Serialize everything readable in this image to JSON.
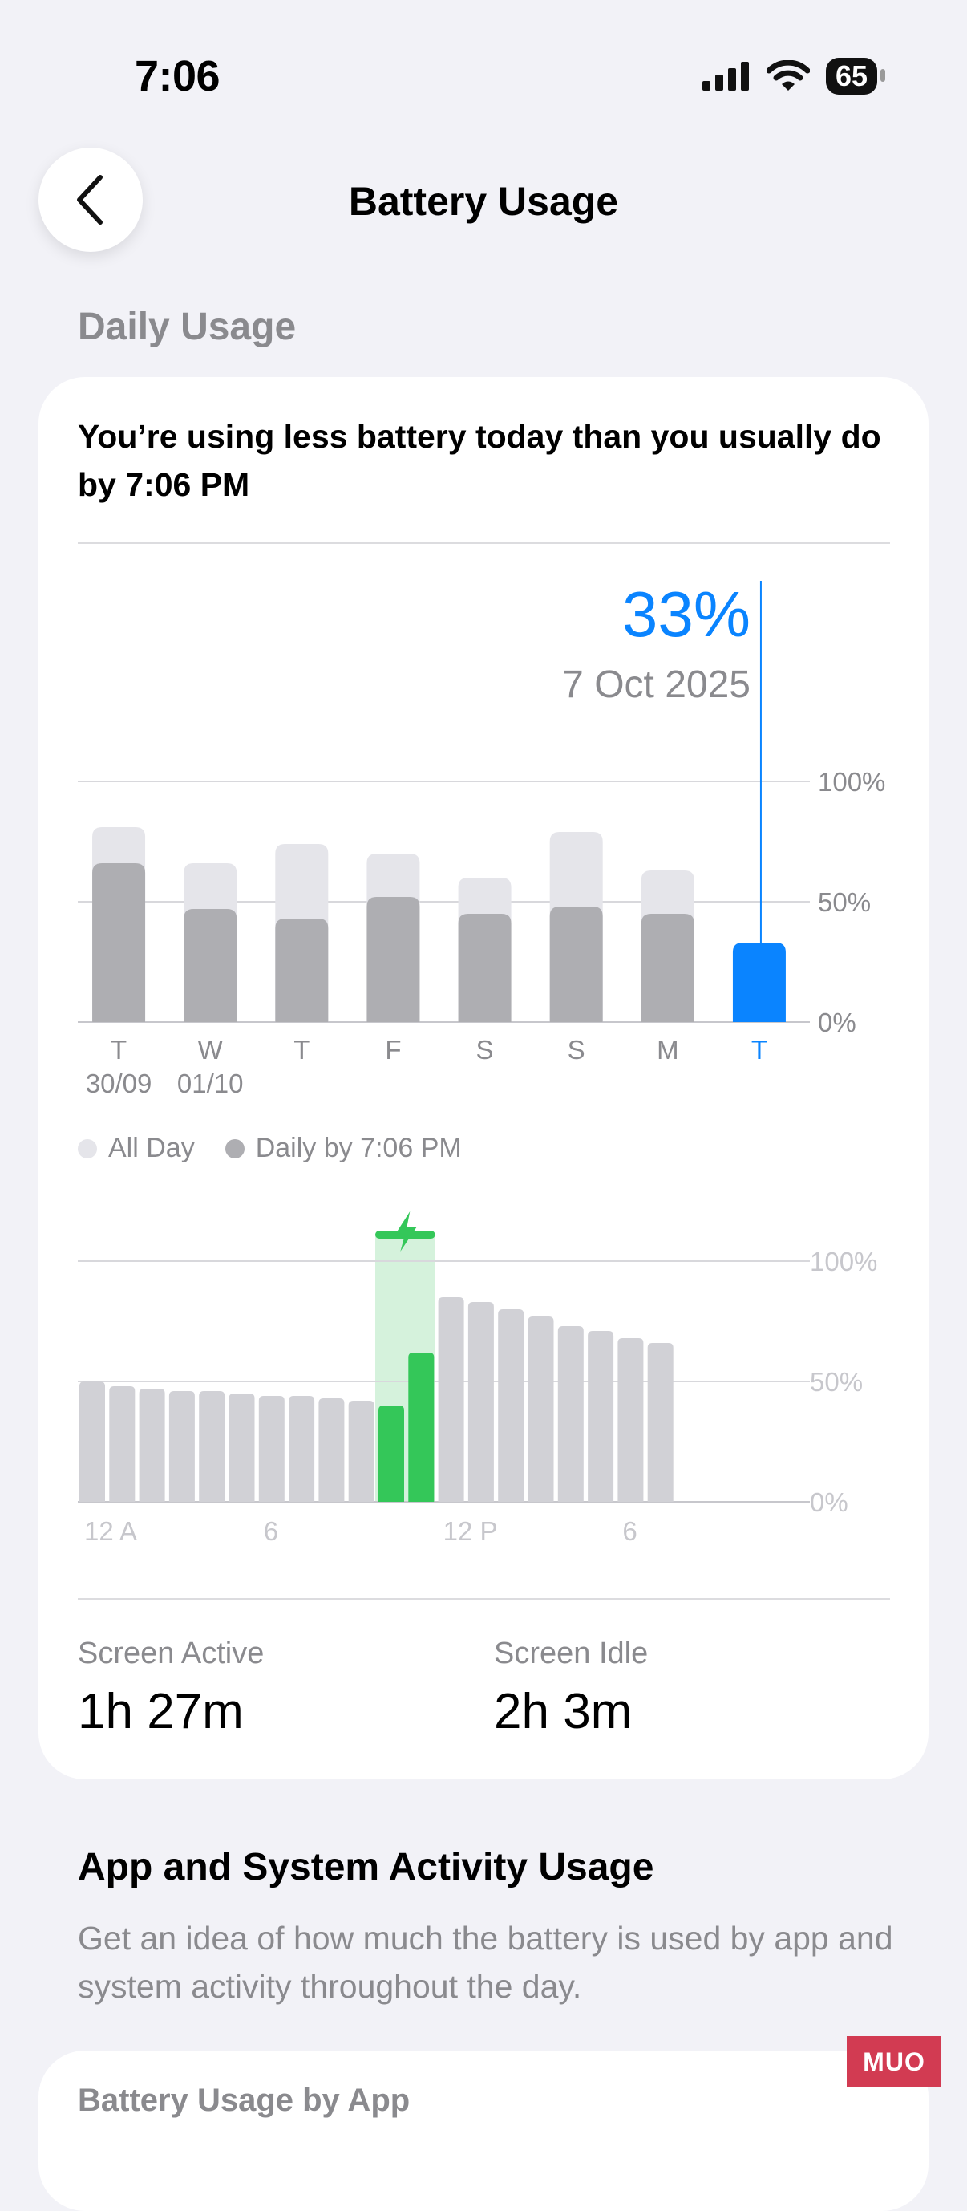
{
  "status_bar": {
    "time": "7:06",
    "battery_level": "65",
    "icons": [
      "cellular-signal-icon",
      "wifi-icon",
      "battery-icon"
    ]
  },
  "nav": {
    "back_icon": "chevron-left-icon",
    "title": "Battery Usage"
  },
  "daily_usage": {
    "section_label": "Daily Usage",
    "headline": "You’re using less battery today than you usually do by 7:06 PM",
    "selected_value": "33%",
    "selected_date": "7 Oct 2025",
    "legend": [
      {
        "label": "All Day",
        "color": "#e5e5ea"
      },
      {
        "label": "Daily by 7:06 PM",
        "color": "#aeaeb2"
      }
    ]
  },
  "stats": {
    "screen_active_label": "Screen Active",
    "screen_active_value": "1h 27m",
    "screen_idle_label": "Screen Idle",
    "screen_idle_value": "2h 3m"
  },
  "app_system": {
    "title": "App and System Activity Usage",
    "description": "Get an idea of how much the battery is used by app and system activity throughout the day.",
    "next_card_title": "Battery Usage by App"
  },
  "watermark": "MUO",
  "chart_data": [
    {
      "type": "bar",
      "categories": [
        {
          "day": "T",
          "date": "30/09"
        },
        {
          "day": "W",
          "date": "01/10"
        },
        {
          "day": "T",
          "date": ""
        },
        {
          "day": "F",
          "date": ""
        },
        {
          "day": "S",
          "date": ""
        },
        {
          "day": "S",
          "date": ""
        },
        {
          "day": "M",
          "date": ""
        },
        {
          "day": "T",
          "date": ""
        }
      ],
      "series": [
        {
          "name": "All Day",
          "values": [
            81,
            66,
            74,
            70,
            60,
            79,
            63,
            null
          ]
        },
        {
          "name": "Daily by 7:06 PM",
          "values": [
            66,
            47,
            43,
            52,
            45,
            48,
            45,
            33
          ]
        }
      ],
      "highlighted_index": 7,
      "y_ticks": [
        "0%",
        "50%",
        "100%"
      ],
      "ylim": [
        0,
        100
      ],
      "colors": {
        "all_day": "#e5e5ea",
        "daily": "#aeaeb2",
        "selected": "#0a84ff"
      }
    },
    {
      "type": "bar",
      "x_tick_labels": [
        "12 A",
        "6",
        "12 P",
        "6"
      ],
      "hours": [
        "12 A",
        "1",
        "2",
        "3",
        "4",
        "5",
        "6",
        "7",
        "8",
        "9",
        "10",
        "11",
        "12 P",
        "1",
        "2",
        "3",
        "4",
        "5",
        "6",
        "7"
      ],
      "values": [
        50,
        48,
        47,
        46,
        46,
        45,
        44,
        44,
        43,
        42,
        40,
        62,
        85,
        83,
        80,
        77,
        73,
        71,
        68,
        66
      ],
      "charging_hours": [
        10,
        11
      ],
      "charging_icon": "lightning-bolt-icon",
      "y_ticks": [
        "0%",
        "50%",
        "100%"
      ],
      "ylim": [
        0,
        100
      ],
      "colors": {
        "level": "#d1d1d6",
        "charging": "#34c759",
        "charging_band": "#d5f2dc"
      }
    }
  ]
}
